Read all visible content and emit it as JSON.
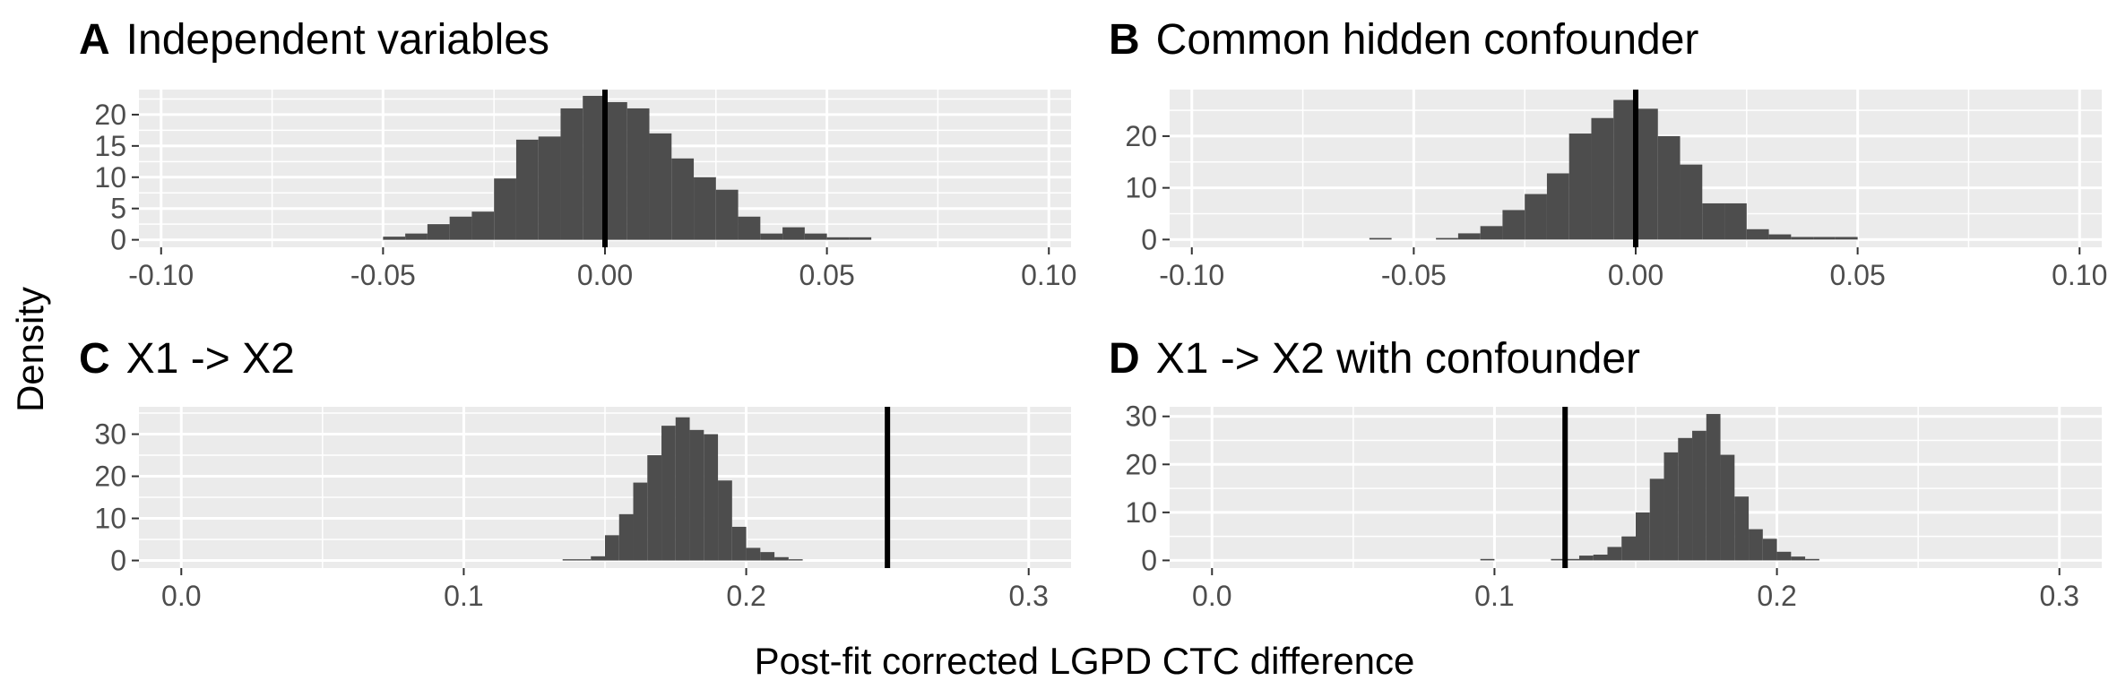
{
  "figure": {
    "ylabel": "Density",
    "xlabel": "Post-fit corrected LGPD CTC difference",
    "colors": {
      "panel_bg": "#ebebeb",
      "grid": "#ffffff",
      "bar": "#4d4d4d",
      "ref_line": "#000000"
    }
  },
  "chart_data": [
    {
      "letter": "A",
      "title": "Independent variables",
      "type": "bar",
      "xlim": [
        -0.105,
        0.105
      ],
      "ylim": [
        -1.2,
        24
      ],
      "xticks": [
        -0.1,
        -0.05,
        0,
        0.05,
        0.1
      ],
      "xtick_labels": [
        "-0.10",
        "-0.05",
        "0.00",
        "0.05",
        "0.10"
      ],
      "yticks": [
        0,
        5,
        10,
        15,
        20
      ],
      "ytick_labels": [
        "0",
        "5",
        "10",
        "15",
        "20"
      ],
      "binwidth": 0.005,
      "bin_centers": [
        -0.0475,
        -0.0425,
        -0.0375,
        -0.0325,
        -0.0275,
        -0.0225,
        -0.0175,
        -0.0125,
        -0.0075,
        -0.0025,
        0.0025,
        0.0075,
        0.0125,
        0.0175,
        0.0225,
        0.0275,
        0.0325,
        0.0375,
        0.0425,
        0.0475,
        0.0525,
        0.0575
      ],
      "values": [
        0.5,
        1,
        2.5,
        3.7,
        4.5,
        9.8,
        16,
        16.5,
        21,
        23,
        22,
        21,
        17,
        13,
        10,
        8,
        3.7,
        1,
        2,
        1,
        0.4,
        0.4
      ],
      "ref_line": 0.0
    },
    {
      "letter": "B",
      "title": "Common hidden confounder",
      "type": "bar",
      "xlim": [
        -0.105,
        0.105
      ],
      "ylim": [
        -1.5,
        29
      ],
      "xticks": [
        -0.1,
        -0.05,
        0,
        0.05,
        0.1
      ],
      "xtick_labels": [
        "-0.10",
        "-0.05",
        "0.00",
        "0.05",
        "0.10"
      ],
      "yticks": [
        0,
        10,
        20
      ],
      "ytick_labels": [
        "0",
        "10",
        "20"
      ],
      "binwidth": 0.005,
      "bin_centers": [
        -0.0575,
        -0.0425,
        -0.0375,
        -0.0325,
        -0.0275,
        -0.0225,
        -0.0175,
        -0.0125,
        -0.0075,
        -0.0025,
        0.0025,
        0.0075,
        0.0125,
        0.0175,
        0.0225,
        0.0275,
        0.0325,
        0.0375,
        0.0425,
        0.0475
      ],
      "values": [
        0.3,
        0.3,
        1.2,
        2.6,
        5.7,
        8.8,
        12.8,
        20.5,
        23.5,
        27,
        25.3,
        20,
        14.5,
        7,
        7,
        2,
        1,
        0.5,
        0.5,
        0.5
      ],
      "ref_line": 0.0
    },
    {
      "letter": "C",
      "title": "X1 -> X2",
      "type": "bar",
      "xlim": [
        -0.015,
        0.315
      ],
      "ylim": [
        -1.8,
        36.5
      ],
      "xticks": [
        0,
        0.1,
        0.2,
        0.3
      ],
      "xtick_labels": [
        "0.0",
        "0.1",
        "0.2",
        "0.3"
      ],
      "yticks": [
        0,
        10,
        20,
        30
      ],
      "ytick_labels": [
        "0",
        "10",
        "20",
        "30"
      ],
      "binwidth": 0.005,
      "bin_centers": [
        0.1375,
        0.1425,
        0.1475,
        0.1525,
        0.1575,
        0.1625,
        0.1675,
        0.1725,
        0.1775,
        0.1825,
        0.1875,
        0.1925,
        0.1975,
        0.2025,
        0.2075,
        0.2125,
        0.2175
      ],
      "values": [
        0.3,
        0.3,
        1,
        6,
        11,
        18.5,
        25,
        32,
        34,
        31,
        30,
        19,
        8,
        3,
        2,
        0.8,
        0.3
      ],
      "ref_line": 0.25
    },
    {
      "letter": "D",
      "title": "X1 -> X2 with confounder",
      "type": "bar",
      "xlim": [
        -0.015,
        0.315
      ],
      "ylim": [
        -1.6,
        32
      ],
      "xticks": [
        0,
        0.1,
        0.2,
        0.3
      ],
      "xtick_labels": [
        "0.0",
        "0.1",
        "0.2",
        "0.3"
      ],
      "yticks": [
        0,
        10,
        20,
        30
      ],
      "ytick_labels": [
        "0",
        "10",
        "20",
        "30"
      ],
      "binwidth": 0.005,
      "bin_centers": [
        0.0975,
        0.1225,
        0.1275,
        0.1325,
        0.1375,
        0.1425,
        0.1475,
        0.1525,
        0.1575,
        0.1625,
        0.1675,
        0.1725,
        0.1775,
        0.1825,
        0.1875,
        0.1925,
        0.1975,
        0.2025,
        0.2075,
        0.2125
      ],
      "values": [
        0.3,
        0.3,
        0.3,
        1,
        1.2,
        2.8,
        5,
        10,
        17,
        22.5,
        25.5,
        27,
        30.5,
        22,
        13.3,
        6.5,
        4.5,
        1.8,
        0.8,
        0.3
      ],
      "ref_line": 0.125
    }
  ]
}
